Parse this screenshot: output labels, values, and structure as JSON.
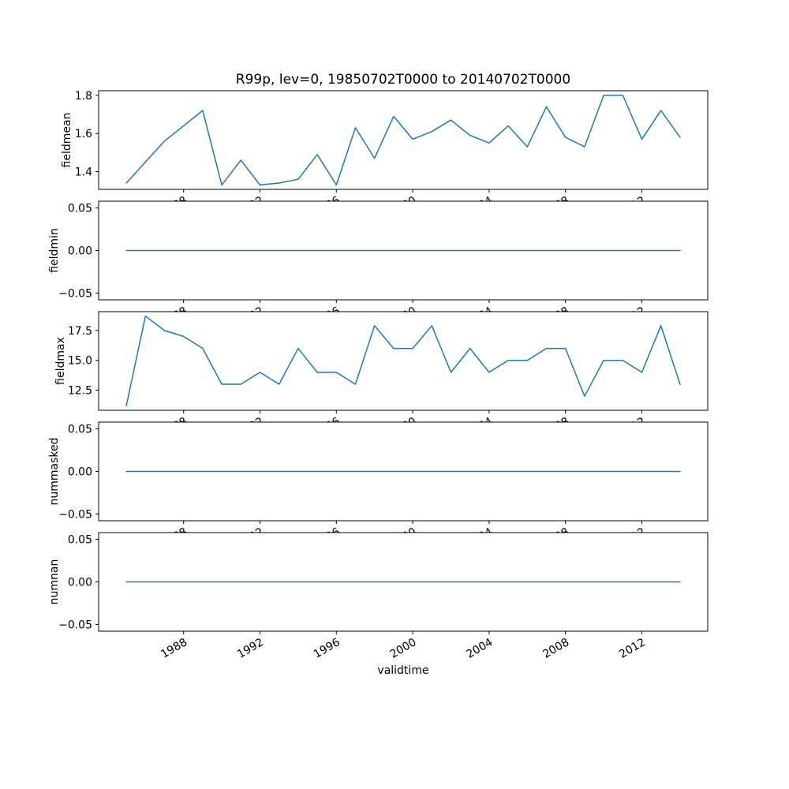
{
  "chart_data": {
    "type": "line",
    "title": "R99p, lev=0, 19850702T0000 to 20140702T0000",
    "xlabel": "validtime",
    "line_color": "#1f77b4",
    "grid": false,
    "legend": "none",
    "xlim": [
      1983.55,
      2015.45
    ],
    "x_years": [
      1985,
      1986,
      1987,
      1988,
      1989,
      1990,
      1991,
      1992,
      1993,
      1994,
      1995,
      1996,
      1997,
      1998,
      1999,
      2000,
      2001,
      2002,
      2003,
      2004,
      2005,
      2006,
      2007,
      2008,
      2009,
      2010,
      2011,
      2012,
      2013,
      2014
    ],
    "xticks": {
      "values": [
        1988,
        1992,
        1996,
        2000,
        2004,
        2008,
        2012
      ],
      "labels": [
        "1988",
        "1992",
        "1996",
        "2000",
        "2004",
        "2008",
        "2012"
      ]
    },
    "panels": [
      {
        "ylabel": "fieldmean",
        "ylim": [
          1.307,
          1.824
        ],
        "yticks": {
          "values": [
            1.4,
            1.6,
            1.8
          ],
          "labels": [
            "1.4",
            "1.6",
            "1.8"
          ]
        },
        "values": [
          1.34,
          1.45,
          1.56,
          1.64,
          1.72,
          1.33,
          1.46,
          1.33,
          1.34,
          1.36,
          1.49,
          1.33,
          1.63,
          1.47,
          1.69,
          1.57,
          1.61,
          1.67,
          1.59,
          1.55,
          1.64,
          1.53,
          1.74,
          1.58,
          1.53,
          1.8,
          1.8,
          1.57,
          1.72,
          1.58
        ]
      },
      {
        "ylabel": "fieldmin",
        "ylim": [
          -0.058,
          0.058
        ],
        "yticks": {
          "values": [
            -0.05,
            0,
            0.05
          ],
          "labels": [
            "−0.05",
            "0.00",
            "0.05"
          ]
        },
        "values": [
          0,
          0,
          0,
          0,
          0,
          0,
          0,
          0,
          0,
          0,
          0,
          0,
          0,
          0,
          0,
          0,
          0,
          0,
          0,
          0,
          0,
          0,
          0,
          0,
          0,
          0,
          0,
          0,
          0,
          0
        ]
      },
      {
        "ylabel": "fieldmax",
        "ylim": [
          10.825,
          19.075
        ],
        "yticks": {
          "values": [
            12.5,
            15.0,
            17.5
          ],
          "labels": [
            "12.5",
            "15.0",
            "17.5"
          ]
        },
        "values": [
          11.2,
          18.7,
          17.5,
          17.0,
          16.0,
          13.0,
          13.0,
          14.0,
          13.0,
          16.0,
          14.0,
          14.0,
          13.0,
          17.9,
          16.0,
          16.0,
          17.9,
          14.0,
          16.0,
          14.0,
          15.0,
          15.0,
          16.0,
          16.0,
          12.0,
          15.0,
          15.0,
          14.0,
          17.9,
          13.0
        ]
      },
      {
        "ylabel": "nummasked",
        "ylim": [
          -0.058,
          0.058
        ],
        "yticks": {
          "values": [
            -0.05,
            0,
            0.05
          ],
          "labels": [
            "−0.05",
            "0.00",
            "0.05"
          ]
        },
        "values": [
          0,
          0,
          0,
          0,
          0,
          0,
          0,
          0,
          0,
          0,
          0,
          0,
          0,
          0,
          0,
          0,
          0,
          0,
          0,
          0,
          0,
          0,
          0,
          0,
          0,
          0,
          0,
          0,
          0,
          0
        ]
      },
      {
        "ylabel": "numnan",
        "ylim": [
          -0.058,
          0.058
        ],
        "yticks": {
          "values": [
            -0.05,
            0,
            0.05
          ],
          "labels": [
            "−0.05",
            "0.00",
            "0.05"
          ]
        },
        "values": [
          0,
          0,
          0,
          0,
          0,
          0,
          0,
          0,
          0,
          0,
          0,
          0,
          0,
          0,
          0,
          0,
          0,
          0,
          0,
          0,
          0,
          0,
          0,
          0,
          0,
          0,
          0,
          0,
          0,
          0
        ]
      }
    ]
  }
}
